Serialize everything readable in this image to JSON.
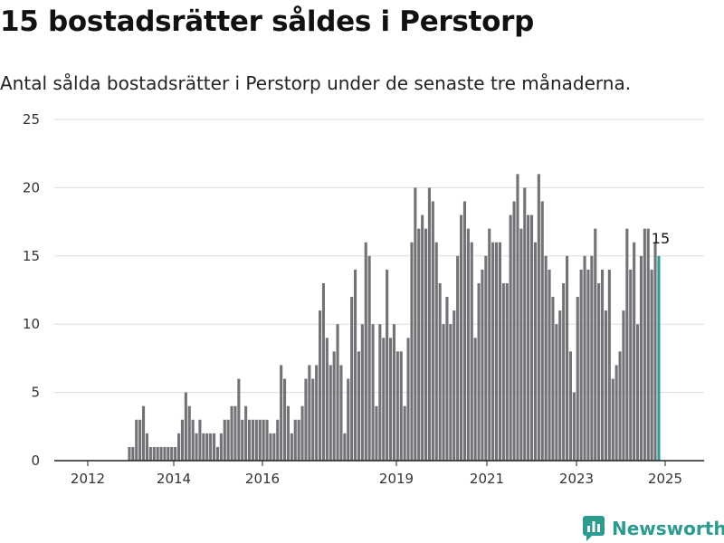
{
  "title": "15 bostadsrätter såldes i Perstorp",
  "subtitle": "Antal sålda bostadsrätter i Perstorp under de senaste tre månaderna.",
  "brand": {
    "name": "Newsworthy",
    "color": "#2a9d90"
  },
  "colors": {
    "bar": "#737276",
    "highlight": "#2a9d90",
    "grid": "#dddddd"
  },
  "chart_data": {
    "type": "bar",
    "x_ticks": [
      "2012",
      "2014",
      "2016",
      "2019",
      "2021",
      "2023",
      "2025"
    ],
    "y_ticks": [
      "0",
      "5",
      "10",
      "15",
      "20",
      "25"
    ],
    "ylim": [
      0,
      25
    ],
    "grid": true,
    "highlight_label": "15",
    "values": [
      0,
      0,
      0,
      0,
      0,
      0,
      0,
      0,
      0,
      0,
      0,
      1,
      1,
      3,
      3,
      4,
      2,
      1,
      1,
      1,
      1,
      1,
      1,
      1,
      1,
      2,
      3,
      5,
      4,
      3,
      2,
      3,
      2,
      2,
      2,
      2,
      1,
      2,
      3,
      3,
      4,
      4,
      6,
      3,
      4,
      3,
      3,
      3,
      3,
      3,
      3,
      2,
      2,
      3,
      7,
      6,
      4,
      2,
      3,
      3,
      4,
      6,
      7,
      6,
      7,
      11,
      13,
      9,
      7,
      8,
      10,
      7,
      2,
      6,
      12,
      14,
      8,
      10,
      16,
      15,
      10,
      4,
      10,
      9,
      14,
      9,
      10,
      8,
      8,
      4,
      9,
      16,
      20,
      17,
      18,
      17,
      20,
      19,
      16,
      13,
      10,
      12,
      10,
      11,
      15,
      18,
      19,
      17,
      16,
      9,
      13,
      14,
      15,
      17,
      16,
      16,
      16,
      13,
      13,
      18,
      19,
      21,
      17,
      20,
      18,
      18,
      16,
      21,
      19,
      15,
      14,
      12,
      10,
      11,
      13,
      15,
      8,
      5,
      12,
      14,
      15,
      14,
      15,
      17,
      13,
      14,
      11,
      14,
      6,
      7,
      8,
      11,
      17,
      14,
      16,
      10,
      15,
      17,
      17,
      14,
      16,
      15
    ]
  }
}
